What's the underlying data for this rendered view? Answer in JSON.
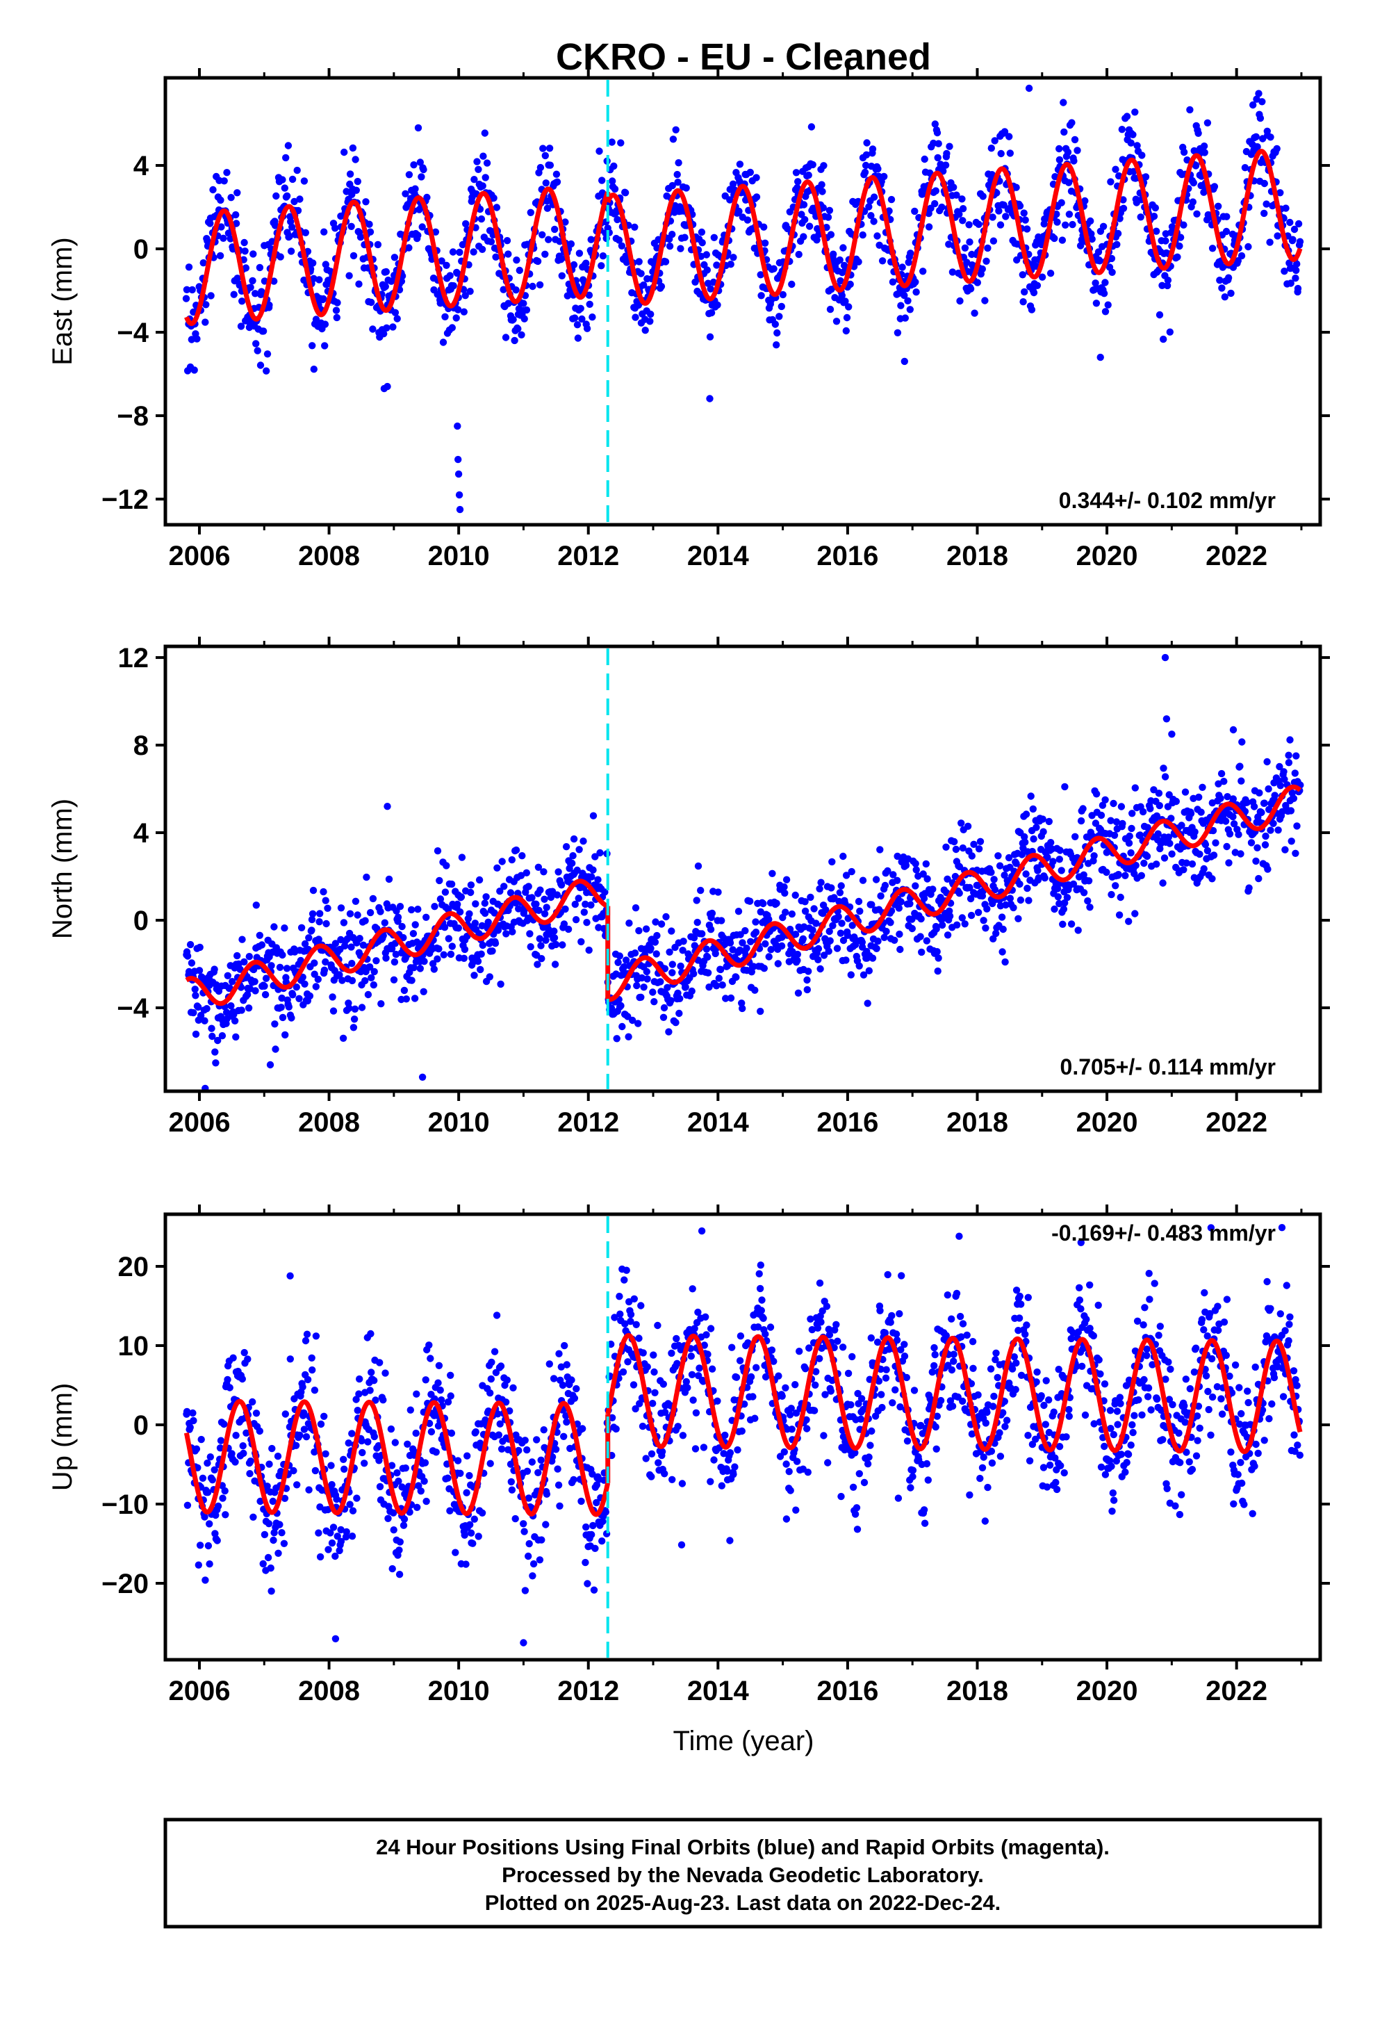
{
  "title": "CKRO  - EU - Cleaned",
  "xlabel": "Time (year)",
  "footer": {
    "line1": "24 Hour Positions Using Final Orbits (blue) and Rapid Orbits (magenta).",
    "line2": "Processed by the Nevada Geodetic Laboratory.",
    "line3": "Plotted on 2025-Aug-23. Last data on 2022-Dec-24."
  },
  "colors": {
    "points": "#0000ff",
    "fit": "#ff0000",
    "break_line": "#00e5ee",
    "frame": "#000000",
    "background": "#ffffff"
  },
  "chart_data": [
    {
      "type": "scatter",
      "component": "East",
      "ylabel": "East (mm)",
      "xlim": [
        2005.475,
        2023.29
      ],
      "ylim": [
        -13.23,
        8.2
      ],
      "x_ticks": [
        2006,
        2008,
        2010,
        2012,
        2014,
        2016,
        2018,
        2020,
        2022
      ],
      "x_tick_labels": [
        "2006",
        "2008",
        "2010",
        "2012",
        "2014",
        "2016",
        "2018",
        "2020",
        "2022"
      ],
      "x_minor_ticks": [
        2007,
        2009,
        2011,
        2013,
        2015,
        2017,
        2019,
        2021,
        2023
      ],
      "y_ticks": [
        4,
        0,
        -4,
        -8,
        -12
      ],
      "y_tick_labels": [
        "4",
        "0",
        "−4",
        "−8",
        "−12"
      ],
      "rate_label": "0.344+/- 0.102 mm/yr",
      "rate_label_placement": "bottom-right",
      "grid": false,
      "break_epoch": 2012.3,
      "data_span": [
        2005.8,
        2022.98
      ],
      "fit": {
        "segments": [
          {
            "start": 2005.8,
            "value": -0.95,
            "rate": 0.21
          },
          {
            "start": 2012.3,
            "value": -0.085,
            "rate": 0.21
          }
        ],
        "annual_amplitude": 2.65,
        "annual_peak_phase": 0.38
      },
      "scatter_sd": 1.25,
      "outliers": [
        [
          2009.98,
          -8.5
        ],
        [
          2009.99,
          -10.1
        ],
        [
          2010.0,
          -10.8
        ],
        [
          2010.01,
          -11.8
        ],
        [
          2010.02,
          -12.5
        ],
        [
          2018.8,
          7.7
        ],
        [
          2008.85,
          -6.7
        ],
        [
          2008.9,
          -6.6
        ],
        [
          2019.9,
          -5.2
        ]
      ]
    },
    {
      "type": "scatter",
      "component": "North",
      "ylabel": "North (mm)",
      "xlim": [
        2005.475,
        2023.29
      ],
      "ylim": [
        -7.81,
        12.51
      ],
      "x_ticks": [
        2006,
        2008,
        2010,
        2012,
        2014,
        2016,
        2018,
        2020,
        2022
      ],
      "x_tick_labels": [
        "2006",
        "2008",
        "2010",
        "2012",
        "2014",
        "2016",
        "2018",
        "2020",
        "2022"
      ],
      "x_minor_ticks": [
        2007,
        2009,
        2011,
        2013,
        2015,
        2017,
        2019,
        2021,
        2023
      ],
      "y_ticks": [
        12,
        8,
        4,
        0,
        -4
      ],
      "y_tick_labels": [
        "12",
        "8",
        "4",
        "0",
        "−4"
      ],
      "rate_label": "0.705+/- 0.114 mm/yr",
      "rate_label_placement": "bottom-right",
      "grid": false,
      "break_epoch": 2012.3,
      "data_span": [
        2005.8,
        2022.98
      ],
      "fit": {
        "segments": [
          {
            "start": 2005.8,
            "value": -3.45,
            "rate": 0.74
          },
          {
            "start": 2012.3,
            "value": -2.9,
            "rate": 0.78
          }
        ],
        "annual_amplitude": 0.75,
        "annual_peak_phase": 0.85
      },
      "scatter_sd": 1.15,
      "outliers": [
        [
          2020.9,
          12.0
        ],
        [
          2020.92,
          9.2
        ],
        [
          2021.0,
          8.5
        ],
        [
          2021.95,
          8.7
        ],
        [
          2008.9,
          5.2
        ],
        [
          2019.35,
          6.1
        ]
      ]
    },
    {
      "type": "scatter",
      "component": "Up",
      "ylabel": "Up (mm)",
      "xlim": [
        2005.475,
        2023.29
      ],
      "ylim": [
        -29.65,
        26.58
      ],
      "x_ticks": [
        2006,
        2008,
        2010,
        2012,
        2014,
        2016,
        2018,
        2020,
        2022
      ],
      "x_tick_labels": [
        "2006",
        "2008",
        "2010",
        "2012",
        "2014",
        "2016",
        "2018",
        "2020",
        "2022"
      ],
      "x_minor_ticks": [
        2007,
        2009,
        2011,
        2013,
        2015,
        2017,
        2019,
        2021,
        2023
      ],
      "y_ticks": [
        20,
        10,
        0,
        -10,
        -20
      ],
      "y_tick_labels": [
        "20",
        "10",
        "0",
        "−10",
        "−20"
      ],
      "rate_label": "-0.169+/- 0.483 mm/yr",
      "rate_label_placement": "top-right",
      "grid": false,
      "break_epoch": 2012.3,
      "data_span": [
        2005.8,
        2022.98
      ],
      "fit": {
        "segments": [
          {
            "start": 2005.8,
            "value": -4.0,
            "rate": -0.05
          },
          {
            "start": 2012.3,
            "value": 4.3,
            "rate": -0.07
          }
        ],
        "annual_amplitude": 7.0,
        "annual_peak_phase": 0.62
      },
      "scatter_sd": 4.3,
      "outliers": [
        [
          2022.7,
          24.9
        ],
        [
          2017.72,
          23.8
        ],
        [
          2019.6,
          23.0
        ],
        [
          2007.4,
          18.8
        ],
        [
          2011.0,
          -27.5
        ],
        [
          2008.1,
          -27.0
        ]
      ]
    }
  ]
}
